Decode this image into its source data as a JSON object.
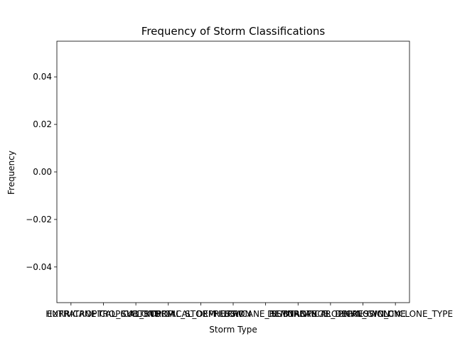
{
  "chart_data": {
    "type": "bar",
    "title": "Frequency of Storm Classifications",
    "xlabel": "Storm Type",
    "ylabel": "Frequency",
    "categories": [
      "HURRICANE",
      "EXTRATROPICAL_CYCLONE",
      "TROPICAL_STORM",
      "SUBTROPICAL_STORM",
      "TROPICAL_DEPRESSION",
      "LOW",
      "HURRICANE_REMNANTS",
      "DISTURBANCE",
      "SUBTROPICAL_DEPRESSION",
      "TROPICAL_CYCLONE",
      "UNKNOWN_CYCLONE_TYPE"
    ],
    "values": [
      0,
      0,
      0,
      0,
      0,
      0,
      0,
      0,
      0,
      0,
      0
    ],
    "ylim": [
      -0.055,
      0.055
    ],
    "yticks": [
      -0.04,
      -0.02,
      0.0,
      0.02,
      0.04
    ],
    "ytick_labels": [
      "−0.04",
      "−0.02",
      "0.00",
      "0.02",
      "0.04"
    ],
    "grid": false,
    "legend": "none"
  }
}
